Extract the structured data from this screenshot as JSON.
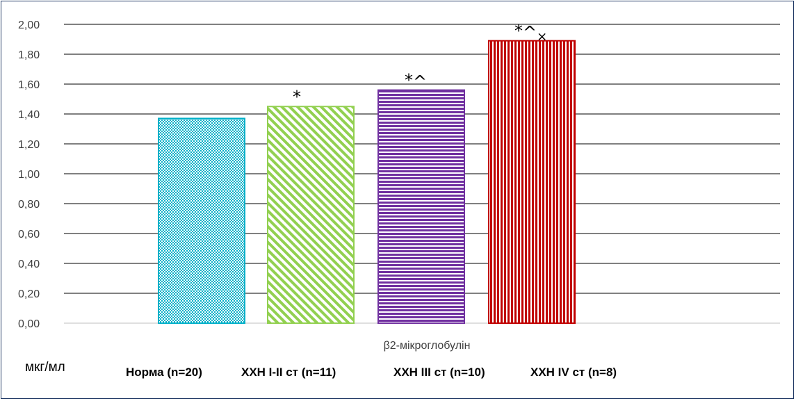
{
  "chart_data": {
    "type": "bar",
    "categories": [
      "β2-мікроглобулін"
    ],
    "series": [
      {
        "name": "Норма (n=20)",
        "values": [
          1.37
        ],
        "annotation": "",
        "color": "#00b0c8",
        "pattern": "checker"
      },
      {
        "name": "ХХН І-ІІ ст (n=11)",
        "values": [
          1.45
        ],
        "annotation": "*",
        "color": "#92d050",
        "pattern": "diagonal"
      },
      {
        "name": "ХХН ІІІ ст (n=10)",
        "values": [
          1.56
        ],
        "annotation": "*^",
        "color": "#7030a0",
        "pattern": "horizontal"
      },
      {
        "name": "ХХН IV ст (n=8)",
        "values": [
          1.89
        ],
        "annotation": "*^×",
        "color": "#c00000",
        "pattern": "vertical"
      }
    ],
    "ylim": [
      0,
      2.0
    ],
    "yticks": [
      "0,00",
      "0,20",
      "0,40",
      "0,60",
      "0,80",
      "1,00",
      "1,20",
      "1,40",
      "1,60",
      "1,80",
      "2,00"
    ],
    "ylabel": "мкг/мл",
    "grid": true,
    "legend_position": "bottom"
  }
}
